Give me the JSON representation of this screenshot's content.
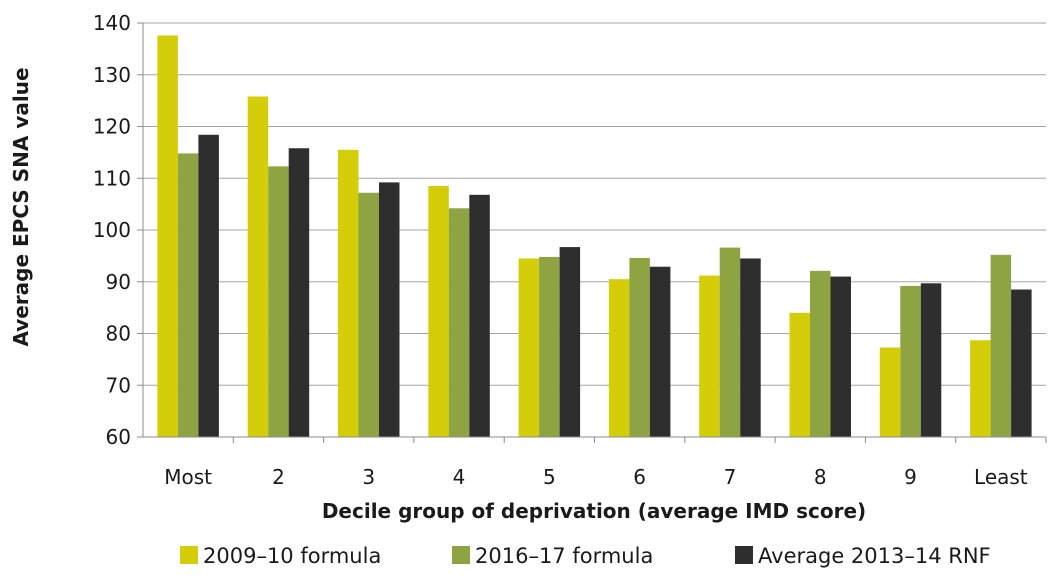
{
  "chart_data": {
    "type": "bar",
    "xlabel": "Decile group of deprivation (average IMD score)",
    "ylabel": "Average EPCS SNA value",
    "ylim": [
      60,
      140
    ],
    "yticks": [
      60,
      70,
      80,
      90,
      100,
      110,
      120,
      130,
      140
    ],
    "grid": true,
    "legend_position": "bottom",
    "categories": [
      "Most",
      "2",
      "3",
      "4",
      "5",
      "6",
      "7",
      "8",
      "9",
      "Least"
    ],
    "series": [
      {
        "name": "2009–10 formula",
        "color": "#d4cd0a",
        "values": [
          137.6,
          125.8,
          115.5,
          108.5,
          94.5,
          90.5,
          91.2,
          84.0,
          77.3,
          78.7
        ]
      },
      {
        "name": "2016–17 formula",
        "color": "#8ea442",
        "values": [
          114.8,
          112.3,
          107.2,
          104.2,
          94.8,
          94.6,
          96.6,
          92.1,
          89.2,
          95.2
        ]
      },
      {
        "name": "Average 2013–14 RNF",
        "color": "#2e2e2e",
        "values": [
          118.4,
          115.8,
          109.2,
          106.8,
          96.7,
          92.9,
          94.5,
          91.0,
          89.7,
          88.5
        ]
      }
    ]
  }
}
